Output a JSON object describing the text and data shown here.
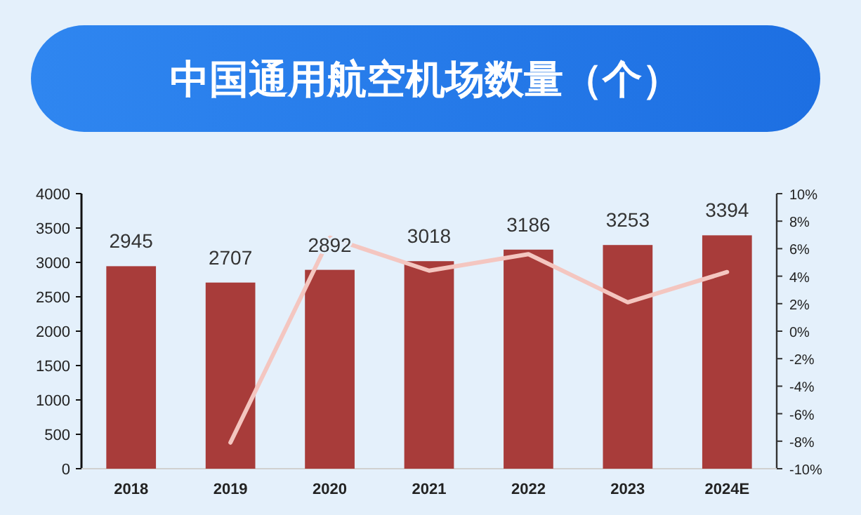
{
  "chart_data": {
    "type": "bar",
    "title": "中国通用航空机场数量（个）",
    "categories": [
      "2018",
      "2019",
      "2020",
      "2021",
      "2022",
      "2023",
      "2024E"
    ],
    "series": [
      {
        "color": "#a83c3a",
        "values": [
          2945,
          2707,
          2892,
          3018,
          3186,
          3253,
          3394
        ],
        "value_labels": [
          "2945",
          "2707",
          "2892",
          "3018",
          "3186",
          "3253",
          "3394"
        ]
      },
      {
        "type": "line",
        "axis": "y2",
        "color": "#f4c6c0",
        "marker": "none",
        "values": [
          null,
          -8.1,
          6.8,
          4.4,
          5.6,
          2.1,
          4.3
        ]
      }
    ],
    "ylim": [
      0,
      4000
    ],
    "yticks": [
      0,
      500,
      1000,
      1500,
      2000,
      2500,
      3000,
      3500,
      4000
    ],
    "y2lim": [
      -10,
      10
    ],
    "y2ticks": [
      {
        "value": -10,
        "label": "-10%"
      },
      {
        "value": -8,
        "label": "-8%"
      },
      {
        "value": -6,
        "label": "-6%"
      },
      {
        "value": -4,
        "label": "-4%"
      },
      {
        "value": -2,
        "label": "-2%"
      },
      {
        "value": 0,
        "label": "0%"
      },
      {
        "value": 2,
        "label": "2%"
      },
      {
        "value": 4,
        "label": "4%"
      },
      {
        "value": 6,
        "label": "6%"
      },
      {
        "value": 8,
        "label": "8%"
      },
      {
        "value": 10,
        "label": "10%"
      }
    ],
    "grid": false
  }
}
